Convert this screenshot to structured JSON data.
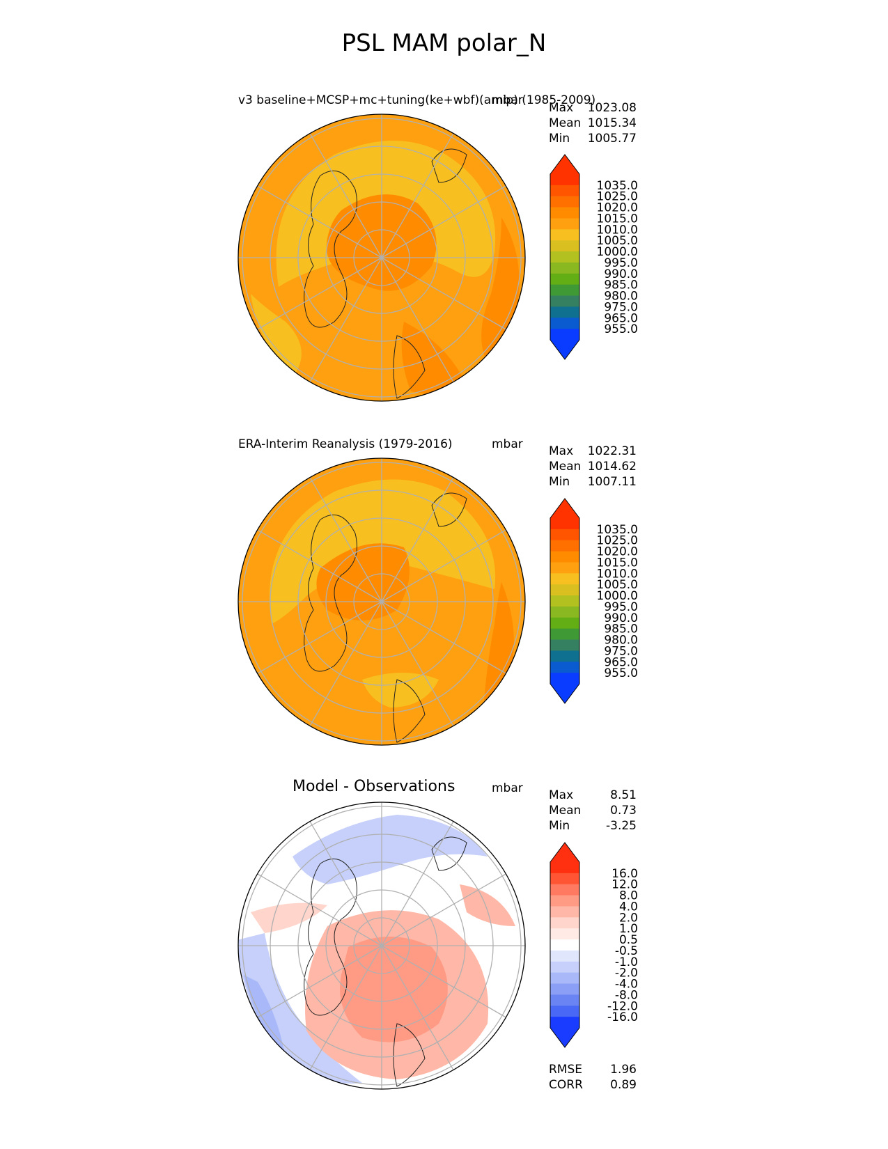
{
  "figure": {
    "title": "PSL MAM polar_N"
  },
  "panels": [
    {
      "title": "v3 baseline+MCSP+mc+tuning(ke+wbf)(amip) (1985-2009)",
      "units": "mbar",
      "stats": [
        {
          "label": "Max",
          "value": "1023.08"
        },
        {
          "label": "Mean",
          "value": "1015.34"
        },
        {
          "label": "Min",
          "value": "1005.77"
        }
      ],
      "colorbar": {
        "ticks": [
          "1035.0",
          "1025.0",
          "1020.0",
          "1015.0",
          "1010.0",
          "1005.0",
          "1000.0",
          "995.0",
          "990.0",
          "985.0",
          "980.0",
          "975.0",
          "965.0",
          "955.0"
        ],
        "colors": [
          "#ff3300",
          "#ff5500",
          "#ff7000",
          "#ff8c00",
          "#ffa010",
          "#f7c020",
          "#d9c020",
          "#b2c020",
          "#8ab820",
          "#63ad15",
          "#3f9a35",
          "#348060",
          "#107090",
          "#0a5ad0",
          "#0a3cff"
        ],
        "top_color": "#ff3300",
        "bottom_color": "#0a3cff"
      }
    },
    {
      "title": "ERA-Interim Reanalysis (1979-2016)",
      "units": "mbar",
      "stats": [
        {
          "label": "Max",
          "value": "1022.31"
        },
        {
          "label": "Mean",
          "value": "1014.62"
        },
        {
          "label": "Min",
          "value": "1007.11"
        }
      ],
      "colorbar": {
        "ticks": [
          "1035.0",
          "1025.0",
          "1020.0",
          "1015.0",
          "1010.0",
          "1005.0",
          "1000.0",
          "995.0",
          "990.0",
          "985.0",
          "980.0",
          "975.0",
          "965.0",
          "955.0"
        ],
        "colors": [
          "#ff3300",
          "#ff5500",
          "#ff7000",
          "#ff8c00",
          "#ffa010",
          "#f7c020",
          "#d9c020",
          "#b2c020",
          "#8ab820",
          "#63ad15",
          "#3f9a35",
          "#348060",
          "#107090",
          "#0a5ad0",
          "#0a3cff"
        ],
        "top_color": "#ff3300",
        "bottom_color": "#0a3cff"
      }
    },
    {
      "title": "Model - Observations",
      "units": "mbar",
      "stats": [
        {
          "label": "Max",
          "value": "8.51"
        },
        {
          "label": "Mean",
          "value": "0.73"
        },
        {
          "label": "Min",
          "value": "-3.25"
        }
      ],
      "extra_stats": [
        {
          "label": "RMSE",
          "value": "1.96"
        },
        {
          "label": "CORR",
          "value": "0.89"
        }
      ],
      "colorbar": {
        "ticks": [
          "16.0",
          "12.0",
          "8.0",
          "4.0",
          "2.0",
          "1.0",
          "0.5",
          "-0.5",
          "-1.0",
          "-2.0",
          "-4.0",
          "-8.0",
          "-12.0",
          "-16.0"
        ],
        "colors": [
          "#ff3010",
          "#ff5535",
          "#ff7a60",
          "#ff9a85",
          "#ffb8a8",
          "#ffd5cc",
          "#ffeae6",
          "#ffffff",
          "#e0e6fc",
          "#c6d0fa",
          "#a8b8f8",
          "#8a9ff5",
          "#6a84f3",
          "#4868f5",
          "#1a3cff"
        ],
        "top_color": "#ff3010",
        "bottom_color": "#1a3cff"
      }
    }
  ],
  "chart_data": [
    {
      "type": "heatmap",
      "title": "v3 baseline+MCSP+mc+tuning(ke+wbf)(amip) (1985-2009)",
      "units": "mbar",
      "projection": "north polar stereographic",
      "max": 1023.08,
      "mean": 1015.34,
      "min": 1005.77,
      "levels": [
        955,
        965,
        975,
        980,
        985,
        990,
        995,
        1000,
        1005,
        1010,
        1015,
        1020,
        1025,
        1035
      ],
      "grid": true
    },
    {
      "type": "heatmap",
      "title": "ERA-Interim Reanalysis (1979-2016)",
      "units": "mbar",
      "projection": "north polar stereographic",
      "max": 1022.31,
      "mean": 1014.62,
      "min": 1007.11,
      "levels": [
        955,
        965,
        975,
        980,
        985,
        990,
        995,
        1000,
        1005,
        1010,
        1015,
        1020,
        1025,
        1035
      ],
      "grid": true
    },
    {
      "type": "heatmap",
      "title": "Model - Observations",
      "units": "mbar",
      "projection": "north polar stereographic",
      "max": 8.51,
      "mean": 0.73,
      "min": -3.25,
      "rmse": 1.96,
      "corr": 0.89,
      "levels": [
        -16,
        -12,
        -8,
        -4,
        -2,
        -1,
        -0.5,
        0.5,
        1,
        2,
        4,
        8,
        12,
        16
      ],
      "grid": true
    }
  ]
}
